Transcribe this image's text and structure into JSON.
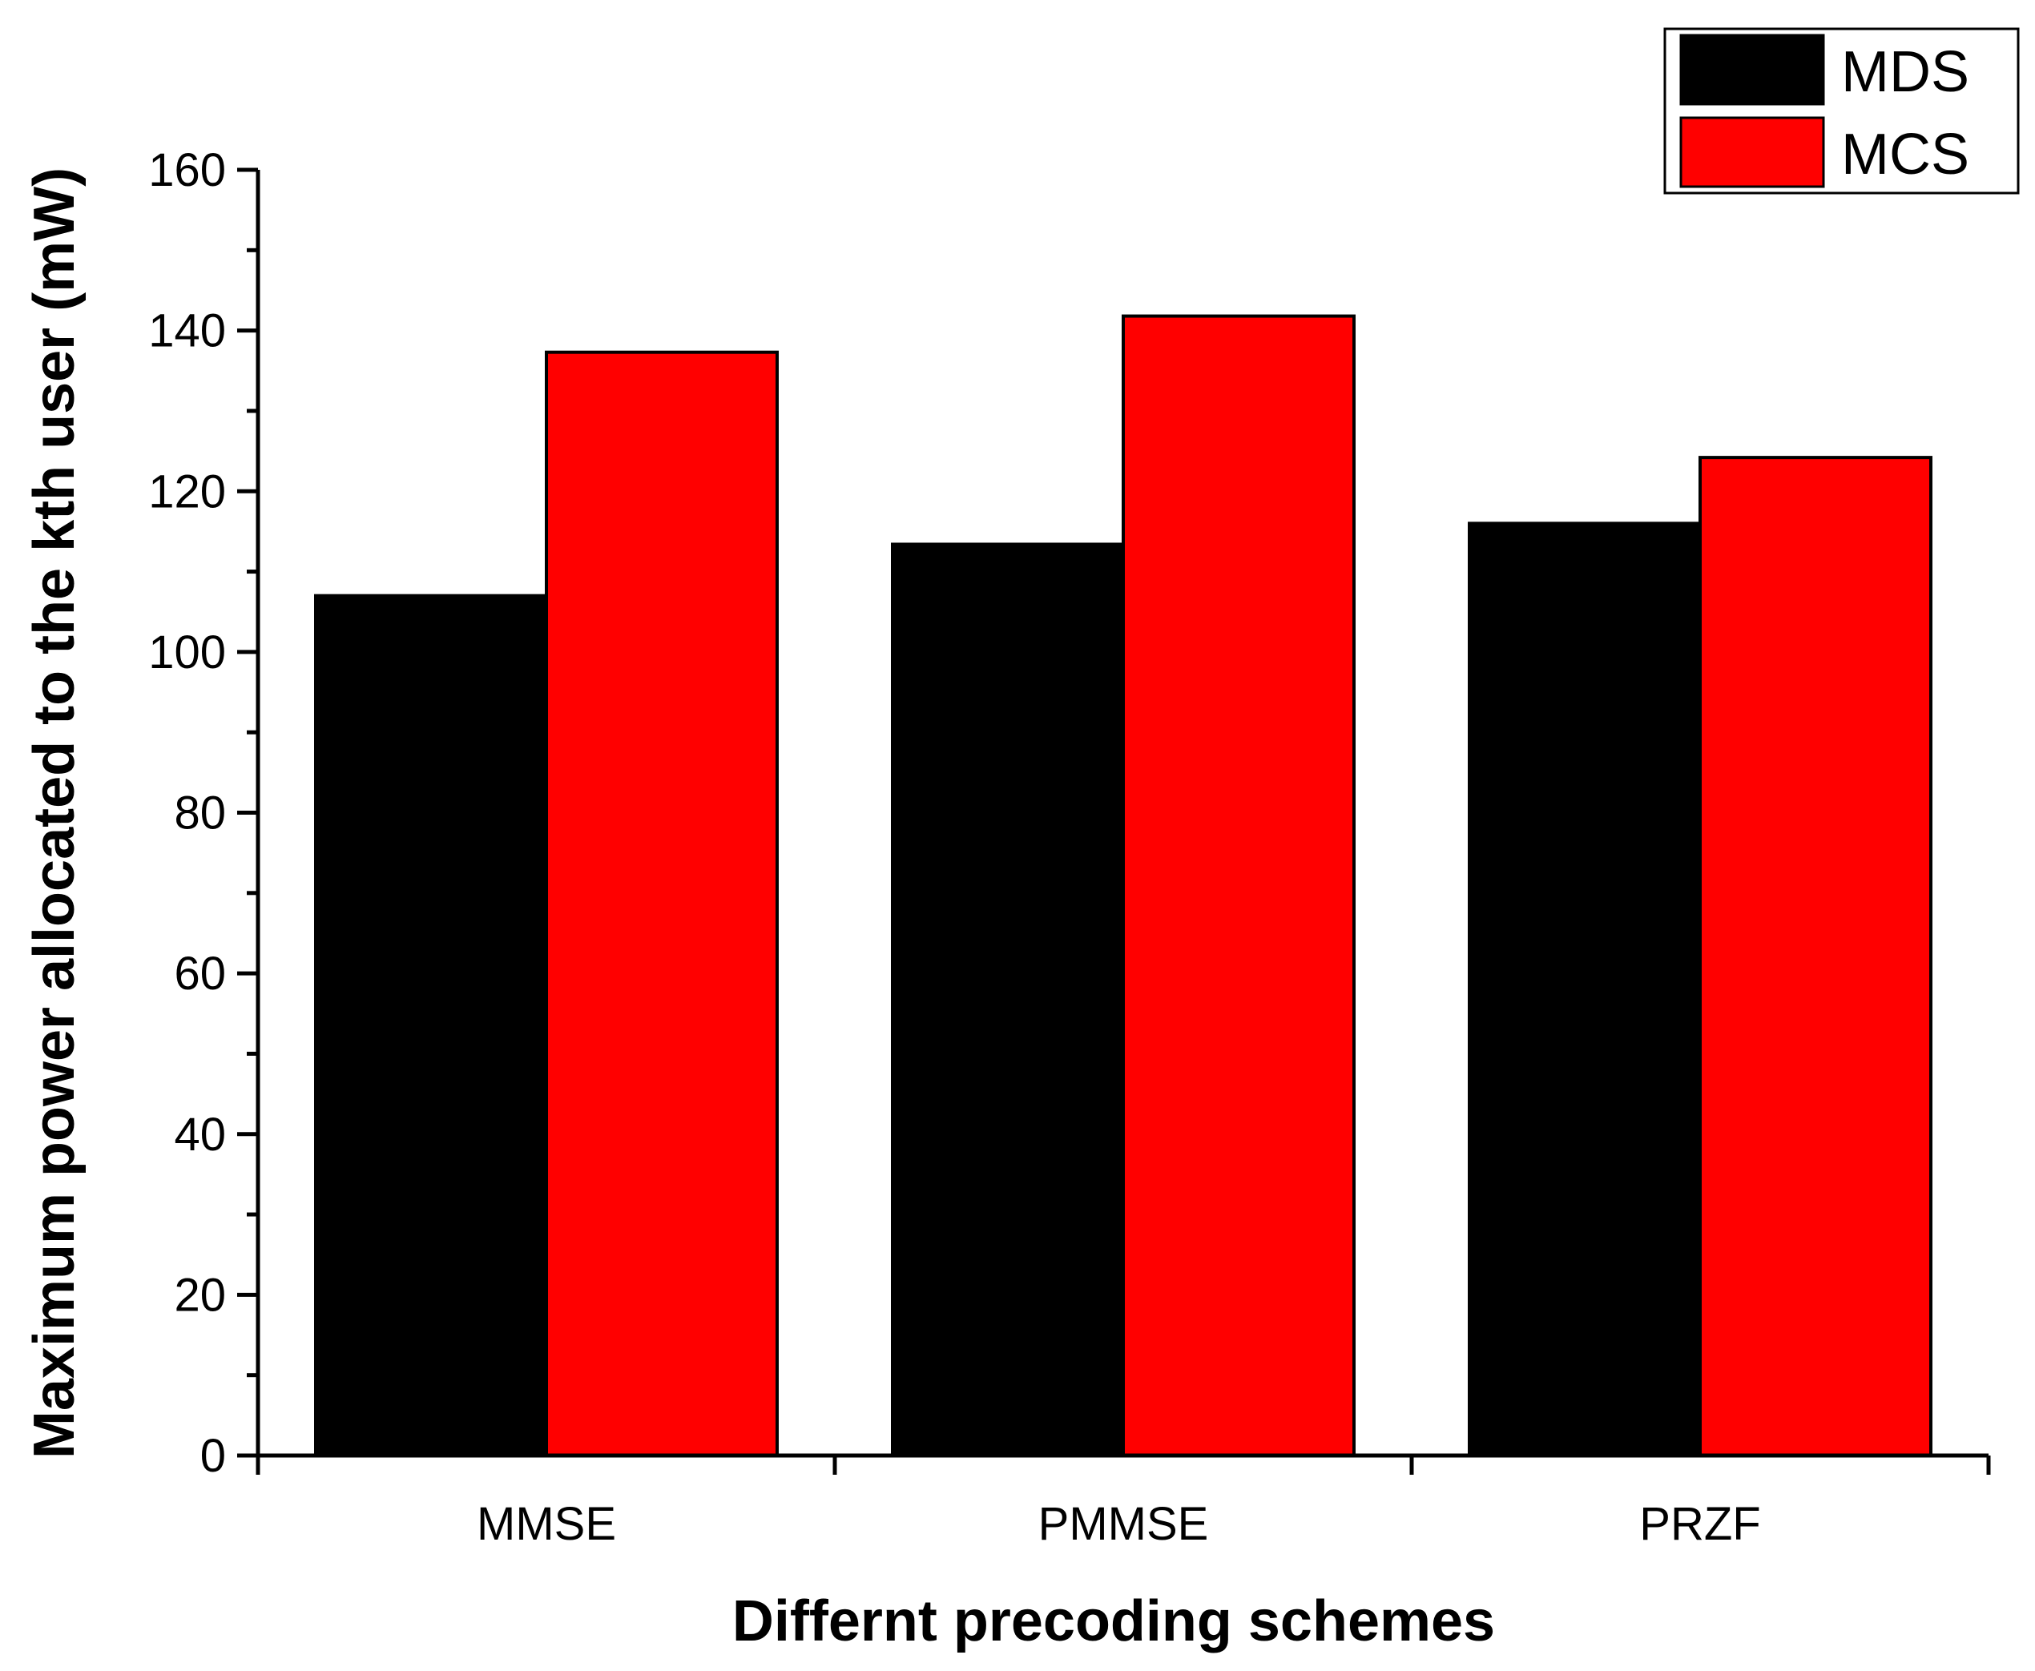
{
  "chart_data": {
    "type": "bar",
    "title": "",
    "xlabel": "Differnt precoding schemes",
    "ylabel": "Maximum power allocated to the kth user (mW)",
    "categories": [
      "MMSE",
      "PMMSE",
      "PRZF"
    ],
    "series": [
      {
        "name": "MDS",
        "color": "#000000",
        "values": [
          107,
          113.4,
          116
        ]
      },
      {
        "name": "MCS",
        "color": "#ff0000",
        "values": [
          137.3,
          141.8,
          124.2
        ]
      }
    ],
    "ylim": [
      0,
      160
    ],
    "yticks": [
      0,
      20,
      40,
      60,
      80,
      100,
      120,
      140,
      160
    ],
    "grid": false,
    "legend_position": "top-right"
  }
}
